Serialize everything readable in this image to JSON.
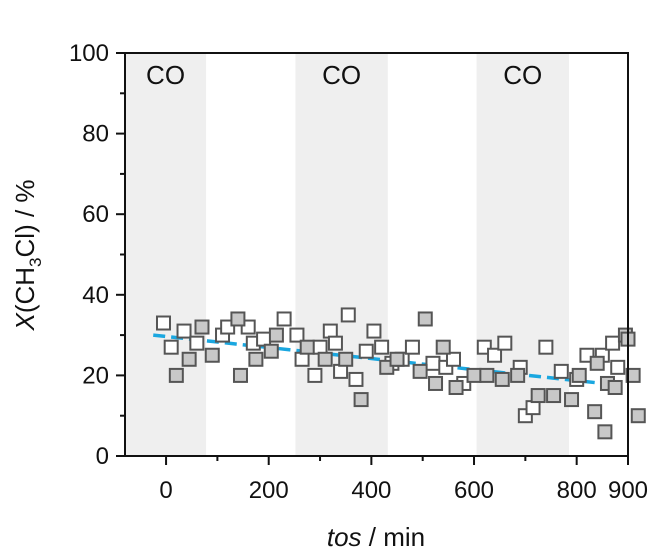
{
  "chart_data": {
    "type": "scatter",
    "xlabel_italic": "tos",
    "xlabel_rest": " / min",
    "ylabel_italic": "X",
    "ylabel_rest_a": "(CH",
    "ylabel_sub": "3",
    "ylabel_rest_b": "Cl) / %",
    "xlim": [
      -80,
      900
    ],
    "ylim": [
      0,
      100
    ],
    "xticks": [
      0,
      200,
      400,
      600,
      800,
      900
    ],
    "xtick_labels": [
      "0",
      "200",
      "400",
      "600",
      "800",
      "900"
    ],
    "yticks": [
      0,
      20,
      40,
      60,
      80,
      100
    ],
    "ytick_labels": [
      "0",
      "20",
      "40",
      "60",
      "80",
      "100"
    ],
    "bands": [
      {
        "x0": -80,
        "x1": 78,
        "label": "CO"
      },
      {
        "x0": 252,
        "x1": 432,
        "label": "CO"
      },
      {
        "x0": 605,
        "x1": 785,
        "label": "CO"
      }
    ],
    "band_color": "#efefef",
    "trend": {
      "x0": -25,
      "y0": 30,
      "x1": 888,
      "y1": 17.5,
      "color": "#1aa7e0"
    },
    "series": [
      {
        "marker": "open-square",
        "stroke": "#555555",
        "fill": "#ffffff",
        "points": [
          [
            -5,
            33
          ],
          [
            10,
            27
          ],
          [
            35,
            31
          ],
          [
            60,
            28
          ],
          [
            110,
            30
          ],
          [
            120,
            32
          ],
          [
            160,
            32
          ],
          [
            170,
            28
          ],
          [
            190,
            29
          ],
          [
            230,
            34
          ],
          [
            255,
            30
          ],
          [
            265,
            24
          ],
          [
            290,
            20
          ],
          [
            300,
            27
          ],
          [
            320,
            31
          ],
          [
            330,
            28
          ],
          [
            340,
            21
          ],
          [
            355,
            35
          ],
          [
            370,
            19
          ],
          [
            390,
            26
          ],
          [
            405,
            31
          ],
          [
            420,
            27
          ],
          [
            440,
            23
          ],
          [
            460,
            24
          ],
          [
            480,
            27
          ],
          [
            520,
            23
          ],
          [
            545,
            22
          ],
          [
            560,
            24
          ],
          [
            580,
            18
          ],
          [
            620,
            27
          ],
          [
            640,
            25
          ],
          [
            660,
            28
          ],
          [
            690,
            22
          ],
          [
            700,
            10
          ],
          [
            715,
            12
          ],
          [
            740,
            27
          ],
          [
            770,
            21
          ],
          [
            800,
            19
          ],
          [
            820,
            25
          ],
          [
            850,
            25
          ],
          [
            870,
            28
          ],
          [
            880,
            22
          ]
        ]
      },
      {
        "marker": "filled-square",
        "stroke": "#555555",
        "fill": "#c8c8c8",
        "points": [
          [
            20,
            20
          ],
          [
            45,
            24
          ],
          [
            70,
            32
          ],
          [
            90,
            25
          ],
          [
            140,
            34
          ],
          [
            145,
            20
          ],
          [
            175,
            24
          ],
          [
            205,
            26
          ],
          [
            215,
            30
          ],
          [
            275,
            27
          ],
          [
            310,
            24
          ],
          [
            350,
            24
          ],
          [
            380,
            14
          ],
          [
            430,
            22
          ],
          [
            450,
            24
          ],
          [
            495,
            21
          ],
          [
            505,
            34
          ],
          [
            525,
            18
          ],
          [
            540,
            27
          ],
          [
            565,
            17
          ],
          [
            600,
            20
          ],
          [
            625,
            20
          ],
          [
            655,
            19
          ],
          [
            685,
            20
          ],
          [
            725,
            15
          ],
          [
            755,
            15
          ],
          [
            790,
            14
          ],
          [
            805,
            20
          ],
          [
            835,
            11
          ],
          [
            840,
            23
          ],
          [
            855,
            6
          ],
          [
            860,
            18
          ],
          [
            875,
            17
          ],
          [
            895,
            30
          ],
          [
            900,
            29
          ],
          [
            910,
            20
          ],
          [
            920,
            10
          ]
        ]
      }
    ]
  }
}
